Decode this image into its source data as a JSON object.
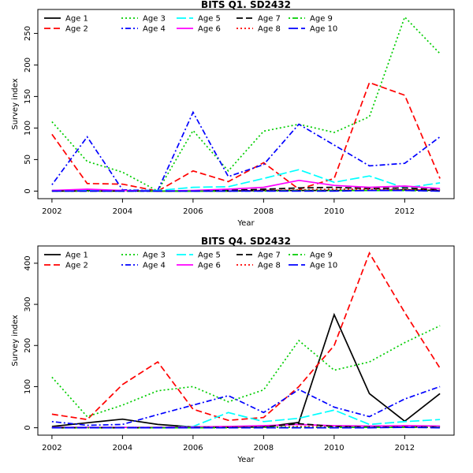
{
  "chart_data": [
    {
      "type": "line",
      "title": "BITS Q1. SD2432",
      "xlabel": "Year",
      "ylabel": "Survey index",
      "xlim": [
        2001.6,
        2013.4
      ],
      "ylim": [
        -12,
        288
      ],
      "xticks": [
        2002,
        2004,
        2006,
        2008,
        2010,
        2012
      ],
      "yticks": [
        0,
        50,
        100,
        150,
        200,
        250
      ],
      "x": [
        2002,
        2003,
        2004,
        2005,
        2006,
        2007,
        2008,
        2009,
        2010,
        2011,
        2012,
        2013
      ],
      "series": [
        {
          "name": "Age 1",
          "color": "#000000",
          "dash": "solid",
          "values": [
            1,
            1,
            1,
            0,
            0,
            0,
            1,
            1,
            1,
            1,
            2,
            1
          ]
        },
        {
          "name": "Age 2",
          "color": "#ff0000",
          "dash": "dashed",
          "values": [
            90,
            12,
            11,
            0,
            32,
            15,
            45,
            3,
            20,
            172,
            152,
            20
          ]
        },
        {
          "name": "Age 3",
          "color": "#00cd00",
          "dash": "dotted",
          "values": [
            110,
            47,
            30,
            0,
            96,
            32,
            95,
            106,
            93,
            118,
            276,
            218
          ]
        },
        {
          "name": "Age 4",
          "color": "#0000ff",
          "dash": "dotdash",
          "values": [
            10,
            86,
            2,
            1,
            125,
            23,
            42,
            106,
            73,
            40,
            44,
            86
          ]
        },
        {
          "name": "Age 5",
          "color": "#00ffff",
          "dash": "longdash",
          "values": [
            1,
            1,
            1,
            1,
            6,
            7,
            20,
            34,
            14,
            24,
            5,
            13
          ]
        },
        {
          "name": "Age 6",
          "color": "#ff00ff",
          "dash": "solid",
          "values": [
            1,
            3,
            1,
            0,
            1,
            3,
            6,
            17,
            9,
            6,
            8,
            4
          ]
        },
        {
          "name": "Age 7",
          "color": "#000000",
          "dash": "dashed",
          "values": [
            0,
            0,
            0,
            0,
            0,
            1,
            3,
            5,
            6,
            4,
            5,
            2
          ]
        },
        {
          "name": "Age 8",
          "color": "#ff0000",
          "dash": "dotted",
          "values": [
            0,
            0,
            0,
            0,
            0,
            0,
            1,
            2,
            3,
            3,
            2,
            1
          ]
        },
        {
          "name": "Age 9",
          "color": "#00cd00",
          "dash": "dotdash",
          "values": [
            0,
            0,
            0,
            0,
            0,
            0,
            0,
            1,
            1,
            1,
            1,
            0
          ]
        },
        {
          "name": "Age 10",
          "color": "#0000ff",
          "dash": "longdash",
          "values": [
            0,
            0,
            0,
            0,
            0,
            0,
            0,
            0,
            0,
            1,
            1,
            0
          ]
        }
      ]
    },
    {
      "type": "line",
      "title": "BITS Q4. SD2432",
      "xlabel": "Year",
      "ylabel": "Survey index",
      "xlim": [
        2001.6,
        2013.4
      ],
      "ylim": [
        -18,
        442
      ],
      "xticks": [
        2002,
        2004,
        2006,
        2008,
        2010,
        2012
      ],
      "yticks": [
        0,
        100,
        200,
        300,
        400
      ],
      "x": [
        2002,
        2003,
        2004,
        2005,
        2006,
        2007,
        2008,
        2009,
        2010,
        2011,
        2012,
        2013
      ],
      "series": [
        {
          "name": "Age 1",
          "color": "#000000",
          "dash": "solid",
          "values": [
            3,
            12,
            21,
            8,
            2,
            2,
            2,
            13,
            275,
            83,
            16,
            83
          ]
        },
        {
          "name": "Age 2",
          "color": "#ff0000",
          "dash": "dashed",
          "values": [
            33,
            20,
            105,
            160,
            45,
            18,
            25,
            100,
            200,
            425,
            280,
            145
          ]
        },
        {
          "name": "Age 3",
          "color": "#00cd00",
          "dash": "dotted",
          "values": [
            123,
            27,
            55,
            90,
            100,
            63,
            92,
            212,
            140,
            160,
            207,
            248
          ]
        },
        {
          "name": "Age 4",
          "color": "#0000ff",
          "dash": "dotdash",
          "values": [
            15,
            6,
            8,
            32,
            55,
            78,
            37,
            93,
            50,
            27,
            70,
            100
          ]
        },
        {
          "name": "Age 5",
          "color": "#00ffff",
          "dash": "longdash",
          "values": [
            1,
            1,
            1,
            1,
            3,
            37,
            15,
            23,
            43,
            8,
            15,
            20
          ]
        },
        {
          "name": "Age 6",
          "color": "#ff00ff",
          "dash": "solid",
          "values": [
            1,
            1,
            1,
            1,
            2,
            3,
            5,
            8,
            5,
            4,
            5,
            4
          ]
        },
        {
          "name": "Age 7",
          "color": "#000000",
          "dash": "dashed",
          "values": [
            0,
            0,
            0,
            0,
            1,
            1,
            2,
            10,
            3,
            2,
            2,
            2
          ]
        },
        {
          "name": "Age 8",
          "color": "#ff0000",
          "dash": "dotted",
          "values": [
            0,
            0,
            0,
            0,
            0,
            1,
            1,
            3,
            2,
            1,
            2,
            1
          ]
        },
        {
          "name": "Age 9",
          "color": "#00cd00",
          "dash": "dotdash",
          "values": [
            0,
            0,
            0,
            0,
            0,
            0,
            1,
            1,
            1,
            1,
            1,
            1
          ]
        },
        {
          "name": "Age 10",
          "color": "#0000ff",
          "dash": "longdash",
          "values": [
            0,
            0,
            0,
            0,
            0,
            0,
            0,
            0,
            0,
            0,
            1,
            0
          ]
        }
      ]
    }
  ]
}
